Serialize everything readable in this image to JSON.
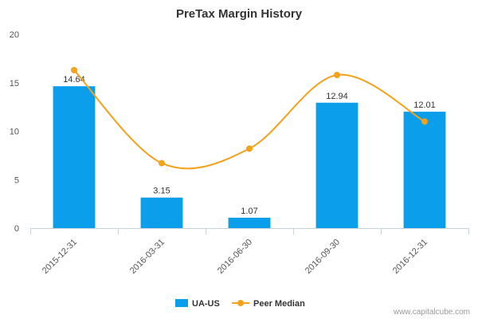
{
  "chart_data": {
    "type": "bar",
    "title": "PreTax Margin History",
    "categories": [
      "2015-12-31",
      "2016-03-31",
      "2016-06-30",
      "2016-09-30",
      "2016-12-31"
    ],
    "series": [
      {
        "name": "UA-US",
        "kind": "bar",
        "color": "#0a9eeb",
        "values": [
          14.64,
          3.15,
          1.07,
          12.94,
          12.01
        ],
        "labels": [
          "14.64",
          "3.15",
          "1.07",
          "12.94",
          "12.01"
        ]
      },
      {
        "name": "Peer Median",
        "kind": "line",
        "color": "#f5a11a",
        "values": [
          16.3,
          6.7,
          8.2,
          15.8,
          11.0
        ]
      }
    ],
    "ylim": [
      0,
      20
    ],
    "yticks": [
      0,
      5,
      10,
      15,
      20
    ],
    "grid": false,
    "legend_position": "bottom"
  },
  "footer": {
    "credit": "www.capitalcube.com"
  }
}
